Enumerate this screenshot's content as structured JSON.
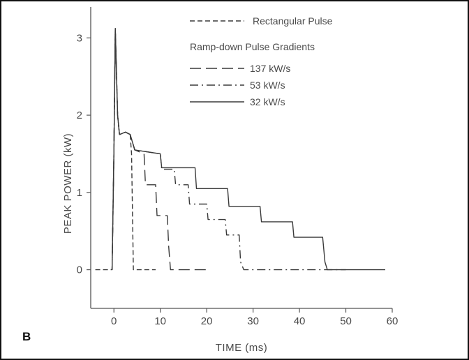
{
  "chart_data": {
    "type": "line",
    "panel_label": "B",
    "xlabel": "TIME  (ms)",
    "ylabel": "PEAK  POWER  (kW)",
    "xlim": [
      -5,
      60
    ],
    "ylim": [
      -0.5,
      3.4
    ],
    "xticks": [
      0,
      10,
      20,
      30,
      40,
      50,
      60
    ],
    "yticks": [
      0,
      1,
      2,
      3
    ],
    "grid": false,
    "legend": {
      "placement": "top-right",
      "subtitle": "Ramp-down Pulse Gradients"
    },
    "series": [
      {
        "name": "Rectangular Pulse",
        "style": "dashed",
        "points": [
          [
            -4,
            0
          ],
          [
            -0.4,
            0
          ],
          [
            0,
            1.5
          ],
          [
            0.3,
            3.12
          ],
          [
            0.8,
            2.0
          ],
          [
            1.2,
            1.75
          ],
          [
            2.5,
            1.78
          ],
          [
            3.5,
            1.75
          ],
          [
            3.8,
            1.5
          ],
          [
            4.2,
            0
          ],
          [
            9,
            0
          ]
        ]
      },
      {
        "name": "137 kW/s",
        "style": "long-dash",
        "points": [
          [
            -0.4,
            0
          ],
          [
            0,
            1.5
          ],
          [
            0.3,
            3.12
          ],
          [
            0.8,
            2.0
          ],
          [
            1.2,
            1.75
          ],
          [
            2.5,
            1.78
          ],
          [
            3.5,
            1.75
          ],
          [
            4.5,
            1.55
          ],
          [
            6.5,
            1.5
          ],
          [
            6.8,
            1.1
          ],
          [
            9,
            1.1
          ],
          [
            9.3,
            0.7
          ],
          [
            11.5,
            0.7
          ],
          [
            11.8,
            0.3
          ],
          [
            12.2,
            0
          ],
          [
            20,
            0
          ]
        ]
      },
      {
        "name": "53 kW/s",
        "style": "dash-dot",
        "points": [
          [
            -0.4,
            0
          ],
          [
            0,
            1.5
          ],
          [
            0.3,
            3.12
          ],
          [
            0.8,
            2.0
          ],
          [
            1.2,
            1.75
          ],
          [
            2.5,
            1.78
          ],
          [
            3.5,
            1.75
          ],
          [
            4.5,
            1.55
          ],
          [
            10,
            1.5
          ],
          [
            10.3,
            1.3
          ],
          [
            13,
            1.3
          ],
          [
            13.3,
            1.1
          ],
          [
            16,
            1.1
          ],
          [
            16.3,
            0.85
          ],
          [
            20,
            0.85
          ],
          [
            20.3,
            0.65
          ],
          [
            24,
            0.65
          ],
          [
            24.3,
            0.45
          ],
          [
            27,
            0.45
          ],
          [
            27.3,
            0.1
          ],
          [
            28,
            0
          ],
          [
            50,
            0
          ]
        ]
      },
      {
        "name": "32 kW/s",
        "style": "solid",
        "points": [
          [
            -0.4,
            0
          ],
          [
            0,
            1.5
          ],
          [
            0.3,
            3.12
          ],
          [
            0.8,
            2.0
          ],
          [
            1.2,
            1.75
          ],
          [
            2.5,
            1.78
          ],
          [
            3.5,
            1.75
          ],
          [
            4.5,
            1.55
          ],
          [
            10,
            1.5
          ],
          [
            10.3,
            1.32
          ],
          [
            17.5,
            1.32
          ],
          [
            17.8,
            1.05
          ],
          [
            24.5,
            1.05
          ],
          [
            24.8,
            0.82
          ],
          [
            31.5,
            0.82
          ],
          [
            31.8,
            0.62
          ],
          [
            38.5,
            0.62
          ],
          [
            38.8,
            0.42
          ],
          [
            45,
            0.42
          ],
          [
            45.5,
            0.1
          ],
          [
            46,
            0
          ],
          [
            58.5,
            0
          ]
        ]
      }
    ]
  },
  "colors": {
    "line": "#3a3a3a",
    "frame": "#111111",
    "axis": "#555555"
  }
}
